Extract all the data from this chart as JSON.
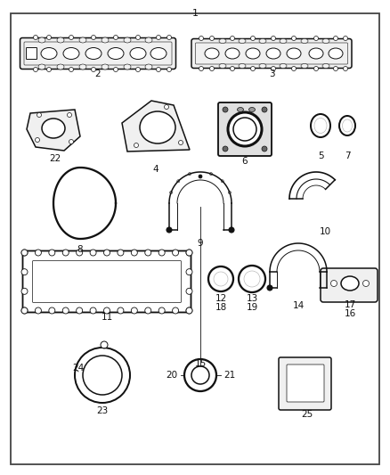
{
  "title": "1",
  "bg_color": "#ffffff",
  "border_color": "#333333",
  "text_color": "#000000",
  "fig_width": 4.38,
  "fig_height": 5.33,
  "dpi": 100
}
